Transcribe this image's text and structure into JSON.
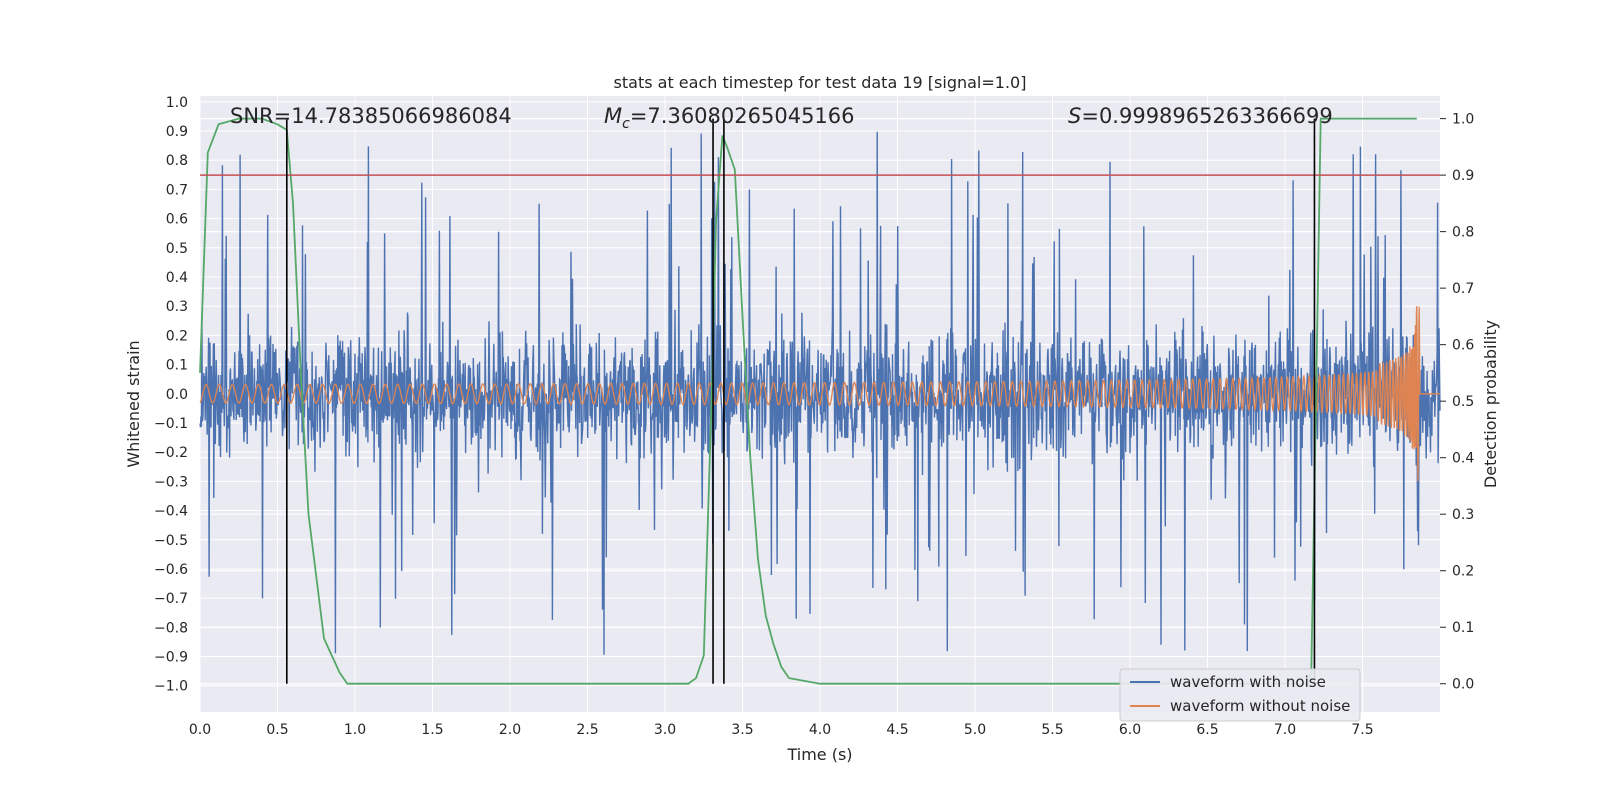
{
  "chart_data": {
    "type": "line",
    "title": "stats at each timestep for test data 19 [signal=1.0]",
    "xlabel": "Time (s)",
    "ylabel": "Whitened strain",
    "y2label": "Detection probability",
    "xlim": [
      0.0,
      8.0
    ],
    "ylim": [
      -1.09,
      1.02
    ],
    "y2lim": [
      -0.05,
      1.04
    ],
    "x_ticks": [
      "0.0",
      "0.5",
      "1.0",
      "1.5",
      "2.0",
      "2.5",
      "3.0",
      "3.5",
      "4.0",
      "4.5",
      "5.0",
      "5.5",
      "6.0",
      "6.5",
      "7.0",
      "7.5"
    ],
    "y_ticks": [
      "1.0",
      "0.9",
      "0.8",
      "0.7",
      "0.6",
      "0.5",
      "0.4",
      "0.3",
      "0.2",
      "0.1",
      "0.0",
      "−0.1",
      "−0.2",
      "−0.3",
      "−0.4",
      "−0.5",
      "−0.6",
      "−0.7",
      "−0.8",
      "−0.9",
      "−1.0"
    ],
    "y2_ticks": [
      "1.0",
      "0.9",
      "0.8",
      "0.7",
      "0.6",
      "0.5",
      "0.4",
      "0.3",
      "0.2",
      "0.1",
      "0.0"
    ],
    "annotations": {
      "snr": "SNR=14.78385066986084",
      "mc_symbol": "M",
      "mc_sub": "c",
      "mc_value": "=7.36080265045166",
      "s_symbol": "S",
      "s_value": "=0.9998965263366699"
    },
    "legend": {
      "items": [
        "waveform with noise",
        "waveform without noise"
      ],
      "placement": "bottom-right"
    },
    "colors": {
      "noise": "#4c72b0",
      "clean": "#dd8452",
      "prob": "#55a868",
      "threshold": "#c44e52",
      "vline": "#000000",
      "background": "#eaeaf2",
      "grid": "#ffffff"
    },
    "threshold_prob": 0.9,
    "vertical_lines_s": [
      0.56,
      3.31,
      3.38,
      7.19
    ],
    "series": [
      {
        "name": "waveform with noise",
        "axis": "left",
        "description": "whitened strain with noise, envelope approx +/-0.35 with spikes up to +/-0.95",
        "x_range": [
          0.0,
          8.0
        ]
      },
      {
        "name": "waveform without noise",
        "axis": "left",
        "description": "chirp signal, amplitude grows from 0.02 to 0.42 near merger at 7.85 s",
        "x_range": [
          0.0,
          8.0
        ],
        "merger_time": 7.85
      },
      {
        "name": "Detection probability",
        "axis": "right",
        "x": [
          0.0,
          0.05,
          0.12,
          0.25,
          0.4,
          0.5,
          0.56,
          0.6,
          0.65,
          0.7,
          0.8,
          0.9,
          0.95,
          1.0,
          1.5,
          2.0,
          2.5,
          3.0,
          3.1,
          3.15,
          3.2,
          3.25,
          3.3,
          3.33,
          3.37,
          3.4,
          3.45,
          3.5,
          3.55,
          3.6,
          3.65,
          3.7,
          3.75,
          3.8,
          4.0,
          5.0,
          6.0,
          7.0,
          7.1,
          7.15,
          7.17,
          7.2,
          7.23,
          7.3,
          7.5,
          7.85
        ],
        "values": [
          0.55,
          0.94,
          0.99,
          1.0,
          1.0,
          0.99,
          0.98,
          0.85,
          0.55,
          0.3,
          0.08,
          0.02,
          0.0,
          0.0,
          0.0,
          0.0,
          0.0,
          0.0,
          0.0,
          0.0,
          0.01,
          0.05,
          0.5,
          0.82,
          0.97,
          0.95,
          0.91,
          0.65,
          0.4,
          0.22,
          0.12,
          0.07,
          0.03,
          0.01,
          0.0,
          0.0,
          0.0,
          0.0,
          0.0,
          0.0,
          0.02,
          0.5,
          1.0,
          1.0,
          1.0,
          1.0
        ]
      }
    ]
  }
}
